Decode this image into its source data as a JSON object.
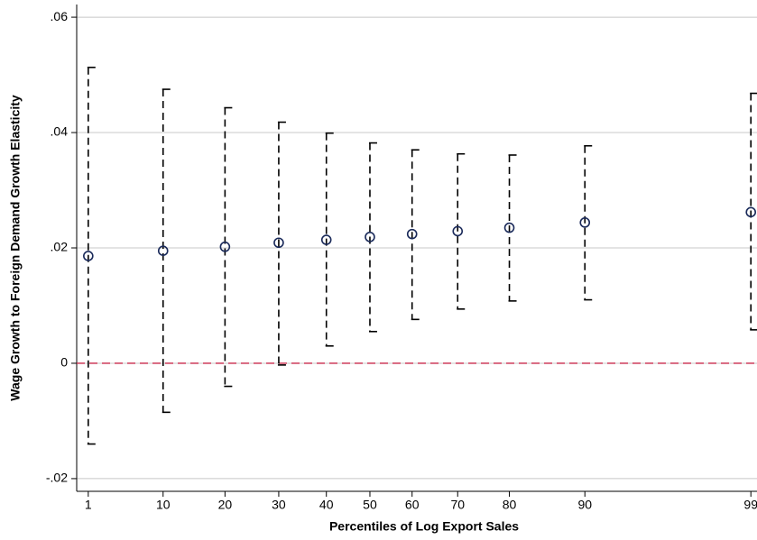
{
  "chart_data": {
    "type": "errorbar",
    "x_label": "Percentiles of Log Export Sales",
    "y_label": "Wage Growth to Foreign Demand Growth Elasticity",
    "x": [
      1.7,
      12.7,
      21.8,
      29.7,
      36.7,
      43.1,
      49.3,
      56.0,
      63.6,
      74.7,
      99.1
    ],
    "values": [
      0.0186,
      0.0195,
      0.0202,
      0.0209,
      0.0214,
      0.0219,
      0.0224,
      0.0229,
      0.0235,
      0.0244,
      0.0262
    ],
    "lower": [
      -0.014,
      -0.0085,
      -0.004,
      -0.0003,
      0.003,
      0.0055,
      0.0076,
      0.0094,
      0.0108,
      0.011,
      0.0058
    ],
    "upper": [
      0.0513,
      0.0475,
      0.0443,
      0.0418,
      0.0399,
      0.0382,
      0.037,
      0.0363,
      0.0361,
      0.0377,
      0.0468
    ],
    "color": "#1a2a5a",
    "xlim": [
      0,
      100
    ],
    "xticks": [
      {
        "value": 1.7,
        "label": "1"
      },
      {
        "value": 12.7,
        "label": "10"
      },
      {
        "value": 21.8,
        "label": "20"
      },
      {
        "value": 29.7,
        "label": "30"
      },
      {
        "value": 36.7,
        "label": "40"
      },
      {
        "value": 43.1,
        "label": "50"
      },
      {
        "value": 49.3,
        "label": "60"
      },
      {
        "value": 56.0,
        "label": "70"
      },
      {
        "value": 63.6,
        "label": "80"
      },
      {
        "value": 74.7,
        "label": "90"
      },
      {
        "value": 99.1,
        "label": "99"
      }
    ],
    "ylim": [
      -0.0222,
      0.0622
    ],
    "yticks": [
      {
        "value": -0.02,
        "label": "-.02"
      },
      0,
      {
        "value": 0.02,
        "label": ".02"
      },
      {
        "value": 0.04,
        "label": ".04"
      },
      {
        "value": 0.06,
        "label": ".06"
      }
    ],
    "grid": true,
    "reference_line": {
      "value": 0,
      "color": "#c8284a"
    }
  }
}
